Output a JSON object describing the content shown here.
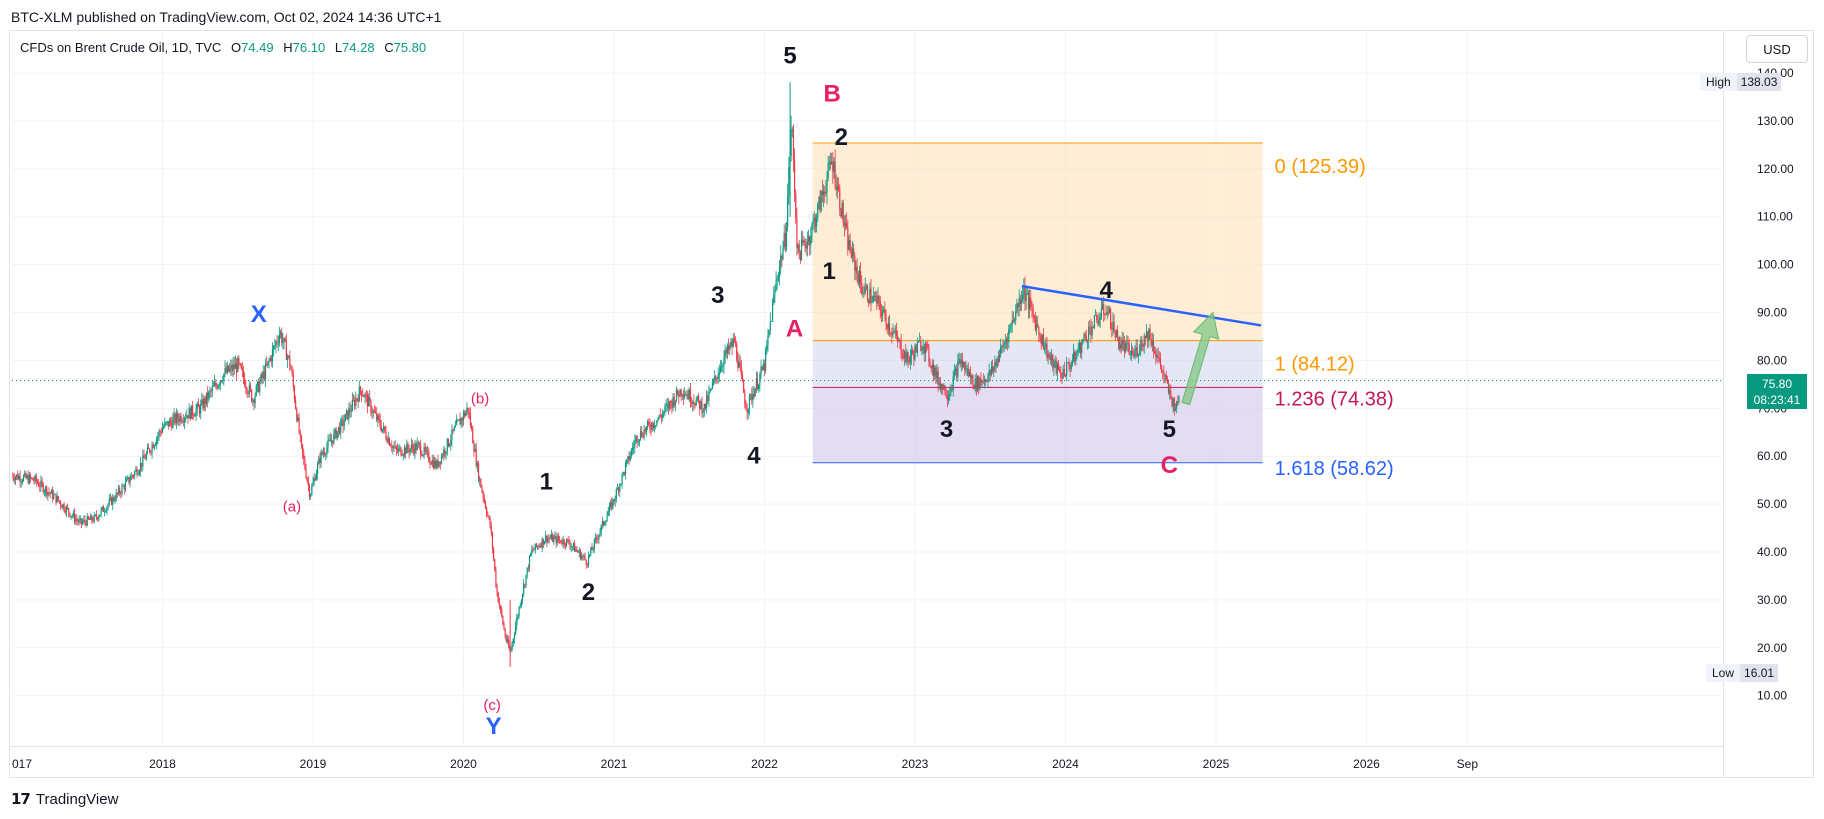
{
  "header": {
    "publish_line": "BTC-XLM published on TradingView.com, Oct 02, 2024 14:36 UTC+1",
    "symbol_label": "CFDs on Brent Crude Oil, 1D, TVC",
    "o_key": "O",
    "o_val": "74.49",
    "h_key": "H",
    "h_val": "76.10",
    "l_key": "L",
    "l_val": "74.28",
    "c_key": "C",
    "c_val": "75.80",
    "currency_button": "USD"
  },
  "footer": {
    "logo_text": "TradingView"
  },
  "price_badges": {
    "high_label": "High",
    "high_value": "138.03",
    "low_label": "Low",
    "low_value": "16.01",
    "current_price": "75.80",
    "countdown": "08:23:41"
  },
  "colors": {
    "up": "#089981",
    "down": "#f23645",
    "wave_black": "#131722",
    "wave_pink": "#e91e63",
    "wave_blue": "#2962ff",
    "fib_orange": "#ff9800",
    "fib_red": "#c2185b",
    "fib_blue": "#2962ff",
    "trendline": "#2962ff",
    "arrow": "#81c784"
  },
  "chart_data": {
    "type": "candlestick",
    "title": "CFDs on Brent Crude Oil, 1D, TVC",
    "currency": "USD",
    "y_ticks": [
      "140.00",
      "130.00",
      "120.00",
      "110.00",
      "100.00",
      "90.00",
      "80.00",
      "70.00",
      "60.00",
      "50.00",
      "40.00",
      "30.00",
      "20.00",
      "10.00"
    ],
    "x_ticks": [
      {
        "label": "017",
        "year": 2017.0
      },
      {
        "label": "2018",
        "year": 2018.0
      },
      {
        "label": "2019",
        "year": 2019.0
      },
      {
        "label": "2020",
        "year": 2020.0
      },
      {
        "label": "2021",
        "year": 2021.0
      },
      {
        "label": "2022",
        "year": 2022.0
      },
      {
        "label": "2023",
        "year": 2023.0
      },
      {
        "label": "2024",
        "year": 2024.0
      },
      {
        "label": "2025",
        "year": 2025.0
      },
      {
        "label": "2026",
        "year": 2026.0
      },
      {
        "label": "Sep",
        "year": 2026.67
      }
    ],
    "ylim": [
      0,
      145
    ],
    "xlim": [
      2016.97,
      2028.0
    ],
    "grid": true,
    "price_path": [
      [
        2017.0,
        56
      ],
      [
        2017.15,
        55
      ],
      [
        2017.3,
        51
      ],
      [
        2017.45,
        46
      ],
      [
        2017.55,
        47
      ],
      [
        2017.7,
        52
      ],
      [
        2017.85,
        58
      ],
      [
        2018.0,
        66
      ],
      [
        2018.1,
        68
      ],
      [
        2018.25,
        70
      ],
      [
        2018.4,
        77
      ],
      [
        2018.5,
        79
      ],
      [
        2018.6,
        72
      ],
      [
        2018.7,
        79
      ],
      [
        2018.78,
        86
      ],
      [
        2018.85,
        79
      ],
      [
        2018.92,
        62
      ],
      [
        2018.98,
        52
      ],
      [
        2019.05,
        60
      ],
      [
        2019.2,
        67
      ],
      [
        2019.32,
        74
      ],
      [
        2019.42,
        68
      ],
      [
        2019.55,
        61
      ],
      [
        2019.7,
        62
      ],
      [
        2019.82,
        58
      ],
      [
        2019.95,
        66
      ],
      [
        2020.03,
        70
      ],
      [
        2020.1,
        56
      ],
      [
        2020.18,
        45
      ],
      [
        2020.22,
        32
      ],
      [
        2020.28,
        22
      ],
      [
        2020.31,
        19
      ],
      [
        2020.38,
        30
      ],
      [
        2020.45,
        40
      ],
      [
        2020.55,
        43
      ],
      [
        2020.7,
        42
      ],
      [
        2020.82,
        38
      ],
      [
        2020.9,
        44
      ],
      [
        2021.0,
        51
      ],
      [
        2021.15,
        64
      ],
      [
        2021.3,
        68
      ],
      [
        2021.45,
        74
      ],
      [
        2021.6,
        70
      ],
      [
        2021.72,
        80
      ],
      [
        2021.8,
        84
      ],
      [
        2021.88,
        70
      ],
      [
        2022.0,
        79
      ],
      [
        2022.08,
        97
      ],
      [
        2022.14,
        106
      ],
      [
        2022.18,
        130
      ],
      [
        2022.22,
        102
      ],
      [
        2022.3,
        106
      ],
      [
        2022.38,
        114
      ],
      [
        2022.45,
        122
      ],
      [
        2022.55,
        105
      ],
      [
        2022.65,
        95
      ],
      [
        2022.75,
        92
      ],
      [
        2022.85,
        86
      ],
      [
        2022.95,
        80
      ],
      [
        2023.05,
        84
      ],
      [
        2023.15,
        76
      ],
      [
        2023.22,
        73
      ],
      [
        2023.3,
        80
      ],
      [
        2023.4,
        75
      ],
      [
        2023.5,
        77
      ],
      [
        2023.6,
        84
      ],
      [
        2023.72,
        95
      ],
      [
        2023.8,
        88
      ],
      [
        2023.9,
        80
      ],
      [
        2023.97,
        77
      ],
      [
        2024.05,
        80
      ],
      [
        2024.15,
        86
      ],
      [
        2024.27,
        91
      ],
      [
        2024.35,
        84
      ],
      [
        2024.45,
        81
      ],
      [
        2024.55,
        86
      ],
      [
        2024.62,
        80
      ],
      [
        2024.7,
        72
      ],
      [
        2024.74,
        70
      ],
      [
        2024.76,
        74.5
      ]
    ],
    "extremes": {
      "high": 138.03,
      "low": 16.01
    },
    "current_price": 75.8,
    "fib_levels": [
      {
        "label": "0 (125.39)",
        "value": 125.39,
        "color": "#ff9800"
      },
      {
        "label": "1 (84.12)",
        "value": 84.12,
        "color": "#ff9800"
      },
      {
        "label": "1.236 (74.38)",
        "value": 74.38,
        "color": "#c2185b"
      },
      {
        "label": "1.618 (58.62)",
        "value": 58.62,
        "color": "#2962ff"
      }
    ],
    "fib_box": {
      "x_start": 2022.32,
      "x_end": 2025.31
    },
    "trendline": {
      "start": [
        2023.71,
        95.5
      ],
      "end": [
        2025.3,
        87.3
      ]
    },
    "projection_arrow": {
      "from": [
        2024.8,
        71
      ],
      "to": [
        2024.98,
        90
      ]
    },
    "wave_labels": [
      {
        "text": "5",
        "x": 2022.17,
        "y": 142,
        "color": "#131722",
        "big": true
      },
      {
        "text": "B",
        "x": 2022.45,
        "y": 134,
        "color": "#e91e63",
        "big": true
      },
      {
        "text": "2",
        "x": 2022.51,
        "y": 125,
        "color": "#131722",
        "big": true
      },
      {
        "text": "1",
        "x": 2022.43,
        "y": 97,
        "color": "#131722",
        "big": true
      },
      {
        "text": "A",
        "x": 2022.2,
        "y": 85,
        "color": "#e91e63",
        "big": true
      },
      {
        "text": "3",
        "x": 2021.69,
        "y": 92,
        "color": "#131722",
        "big": true
      },
      {
        "text": "4",
        "x": 2021.93,
        "y": 58.5,
        "color": "#131722",
        "big": true
      },
      {
        "text": "4",
        "x": 2024.27,
        "y": 93,
        "color": "#131722",
        "big": true
      },
      {
        "text": "3",
        "x": 2023.21,
        "y": 64,
        "color": "#131722",
        "big": true
      },
      {
        "text": "5",
        "x": 2024.69,
        "y": 64,
        "color": "#131722",
        "big": true
      },
      {
        "text": "C",
        "x": 2024.69,
        "y": 56.5,
        "color": "#e91e63",
        "big": true
      },
      {
        "text": "X",
        "x": 2018.64,
        "y": 88,
        "color": "#2962ff",
        "big": true
      },
      {
        "text": "Y",
        "x": 2020.2,
        "y": 2,
        "color": "#2962ff",
        "big": true
      },
      {
        "text": "(a)",
        "x": 2018.86,
        "y": 48.5,
        "color": "#e91e63",
        "big": false
      },
      {
        "text": "(b)",
        "x": 2020.11,
        "y": 71,
        "color": "#e91e63",
        "big": false
      },
      {
        "text": "(c)",
        "x": 2020.19,
        "y": 7,
        "color": "#e91e63",
        "big": false
      },
      {
        "text": "1",
        "x": 2020.55,
        "y": 53,
        "color": "#131722",
        "big": true
      },
      {
        "text": "2",
        "x": 2020.83,
        "y": 30,
        "color": "#131722",
        "big": true
      }
    ]
  }
}
